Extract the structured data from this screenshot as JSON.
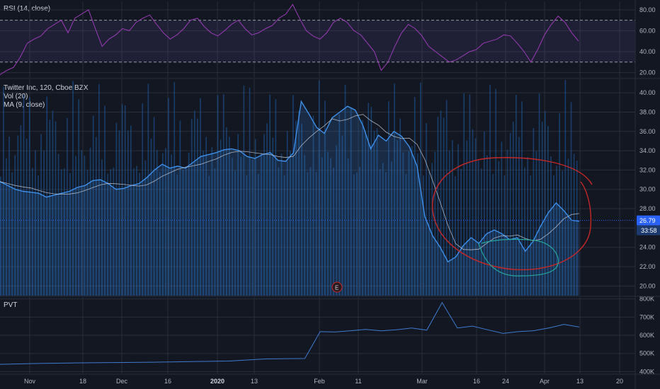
{
  "colors": {
    "background": "#131722",
    "grid": "#2a2e39",
    "rsi_line": "#9c3cb8",
    "rsi_band": "#7e57c2",
    "price_line": "#3d8fea",
    "volume": "#1e5ea8",
    "annotation_red": "#c62828",
    "annotation_cyan": "#26a69a",
    "pvt_line": "#3d7bd0",
    "price_badge": "#2962ff"
  },
  "chart_data": [
    {
      "type": "line",
      "title": "RSI (14, close)",
      "ylim": [
        15,
        88
      ],
      "yticks": [
        "20.00",
        "40.00",
        "60.00",
        "80.00"
      ],
      "ytick_values": [
        20,
        40,
        60,
        80
      ],
      "bands": [
        30,
        70
      ],
      "x": [
        0,
        2,
        4,
        6,
        8,
        10,
        12,
        14,
        16,
        18,
        20,
        22,
        24,
        26,
        28,
        30,
        32,
        34,
        36,
        38,
        40,
        42,
        44,
        46,
        48,
        50,
        52,
        54,
        56,
        58,
        60,
        62,
        64,
        66,
        68,
        70,
        72,
        74,
        76,
        78,
        80,
        82,
        84,
        86,
        88,
        90,
        92,
        94,
        96,
        98,
        100,
        102,
        104,
        106,
        108,
        110,
        112,
        114,
        116,
        118,
        120,
        122,
        124,
        126,
        128,
        130,
        132,
        134,
        136,
        138,
        140,
        142,
        144,
        146,
        148,
        150,
        152,
        154,
        156,
        158,
        160,
        162,
        164,
        166,
        168,
        170
      ],
      "y": [
        18,
        22,
        25,
        35,
        48,
        52,
        55,
        62,
        66,
        70,
        58,
        72,
        76,
        80,
        62,
        45,
        52,
        56,
        62,
        60,
        68,
        72,
        75,
        66,
        58,
        52,
        56,
        62,
        70,
        72,
        64,
        58,
        55,
        60,
        66,
        70,
        62,
        56,
        58,
        62,
        65,
        72,
        76,
        85,
        72,
        60,
        55,
        52,
        58,
        68,
        72,
        68,
        60,
        56,
        48,
        40,
        22,
        30,
        45,
        58,
        66,
        62,
        55,
        45,
        40,
        35,
        30,
        32,
        36,
        40,
        42,
        48,
        50,
        52,
        56,
        55,
        48,
        40,
        30,
        42,
        56,
        66,
        74,
        68,
        58,
        50
      ],
      "name": "RSI"
    },
    {
      "type": "line",
      "title": "Twitter Inc, 120, Cboe BZX",
      "labels": [
        "Vol (20)",
        "MA (9, close)"
      ],
      "ylim": [
        19.0,
        41.4
      ],
      "yticks": [
        "20.00",
        "22.00",
        "24.00",
        "26.00",
        "28.00",
        "30.00",
        "32.00",
        "34.00",
        "36.00",
        "38.00",
        "40.00"
      ],
      "ytick_values": [
        20,
        22,
        24,
        26,
        28,
        30,
        32,
        34,
        36,
        38,
        40
      ],
      "x": [
        0,
        2,
        4,
        6,
        8,
        10,
        12,
        14,
        16,
        18,
        20,
        22,
        24,
        26,
        28,
        30,
        32,
        34,
        36,
        38,
        40,
        42,
        44,
        46,
        48,
        50,
        52,
        54,
        56,
        58,
        60,
        62,
        64,
        66,
        68,
        70,
        72,
        74,
        76,
        78,
        80,
        82,
        84,
        86,
        88,
        90,
        92,
        94,
        96,
        98,
        100,
        102,
        104,
        106,
        108,
        110,
        112,
        114,
        116,
        118,
        120,
        122,
        124,
        126,
        128,
        130,
        132,
        134,
        136,
        138,
        140,
        142,
        144,
        146,
        148,
        150,
        152,
        154,
        156,
        158,
        160,
        162,
        164,
        166,
        168,
        170
      ],
      "y": [
        30.8,
        30.4,
        30.0,
        29.8,
        29.7,
        29.6,
        29.2,
        29.4,
        29.6,
        29.8,
        30.2,
        30.4,
        30.9,
        31.0,
        30.6,
        30.0,
        30.1,
        30.4,
        30.6,
        31.2,
        32.0,
        32.6,
        32.2,
        32.4,
        32.2,
        32.8,
        33.4,
        33.6,
        33.8,
        34.1,
        34.2,
        34.0,
        33.4,
        33.2,
        33.6,
        33.8,
        33.0,
        32.9,
        33.8,
        39.1,
        37.8,
        36.4,
        35.8,
        37.4,
        38.0,
        38.6,
        38.2,
        36.6,
        34.2,
        35.6,
        35.0,
        36.0,
        35.5,
        34.4,
        32.4,
        27.2,
        25.2,
        24.0,
        22.5,
        23.0,
        24.2,
        25.0,
        24.4,
        25.4,
        25.8,
        25.4,
        24.8,
        25.0,
        23.6,
        24.6,
        26.2,
        27.6,
        28.6,
        27.8,
        26.8,
        26.7,
        26.7,
        26.6,
        26.6,
        26.6,
        26.6,
        26.6,
        26.6,
        26.6,
        26.6,
        26.6
      ],
      "visible_points": 76,
      "name": "Price",
      "last_price": "26.79",
      "countdown": "33:58",
      "event_marker": "E"
    },
    {
      "type": "line",
      "title": "PVT",
      "ylim": [
        390,
        810
      ],
      "yticks": [
        "400K",
        "500K",
        "600K",
        "700K",
        "800K"
      ],
      "ytick_values": [
        400,
        500,
        600,
        700,
        800
      ],
      "x": [
        0,
        5,
        10,
        15,
        20,
        25,
        30,
        35,
        40,
        42,
        44,
        46,
        48,
        50,
        52,
        54,
        56,
        58,
        60,
        62,
        64,
        66,
        68,
        70,
        72,
        74,
        76
      ],
      "y": [
        440,
        445,
        448,
        450,
        452,
        455,
        458,
        470,
        472,
        620,
        618,
        625,
        632,
        624,
        630,
        640,
        628,
        780,
        640,
        650,
        630,
        610,
        620,
        625,
        640,
        660,
        645
      ],
      "name": "PVT"
    }
  ],
  "xaxis": {
    "labels": [
      "Nov",
      "18",
      "Dec",
      "16",
      "2020",
      "13",
      "Feb",
      "11",
      "Mar",
      "16",
      "24",
      "Apr",
      "13",
      "20"
    ],
    "positions": [
      42,
      117,
      172,
      237,
      307,
      359,
      451,
      506,
      596,
      673,
      714,
      769,
      819,
      875
    ],
    "bold": [
      "2020"
    ]
  }
}
